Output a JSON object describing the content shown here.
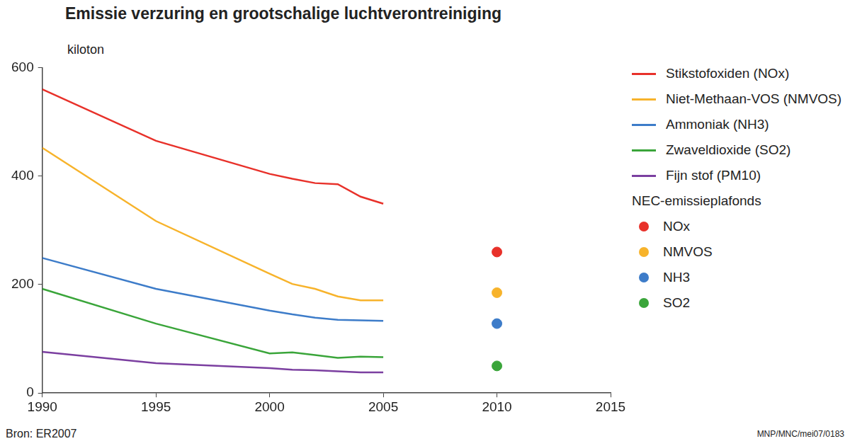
{
  "chart_data": {
    "type": "line",
    "title": "Emissie verzuring en grootschalige luchtverontreiniging",
    "y_label": "kiloton",
    "legend_section": "NEC-emissieplafonds",
    "source": "Bron: ER2007",
    "credit": "MNP/MNC/mei07/0183",
    "x": [
      1990,
      1995,
      2000,
      2001,
      2002,
      2003,
      2004,
      2005
    ],
    "xlim": [
      1990,
      2015
    ],
    "xticks": [
      1990,
      1995,
      2000,
      2005,
      2010,
      2015
    ],
    "ylim": [
      0,
      600
    ],
    "yticks": [
      0,
      200,
      400,
      600
    ],
    "grid": false,
    "legend": "right",
    "series": [
      {
        "name": "Stikstofoxiden (NOx)",
        "type": "line",
        "color": "#e8312a",
        "values": [
          560,
          465,
          404,
          395,
          387,
          385,
          362,
          349
        ]
      },
      {
        "name": "Niet-Methaan-VOS (NMVOS)",
        "type": "line",
        "color": "#f7b32b",
        "values": [
          452,
          317,
          220,
          201,
          192,
          178,
          171,
          171
        ]
      },
      {
        "name": "Ammoniak (NH3)",
        "type": "line",
        "color": "#3d7cc9",
        "values": [
          249,
          192,
          152,
          145,
          139,
          135,
          134,
          133
        ]
      },
      {
        "name": "Zwaveldioxide (SO2)",
        "type": "line",
        "color": "#3aa53a",
        "values": [
          192,
          128,
          73,
          75,
          70,
          65,
          67,
          66
        ]
      },
      {
        "name": "Fijn stof (PM10)",
        "type": "line",
        "color": "#7b3fa0",
        "values": [
          76,
          55,
          46,
          43,
          42,
          40,
          38,
          38
        ]
      },
      {
        "name": "NOx",
        "type": "scatter",
        "marker": "circle",
        "color": "#e8312a",
        "x": [
          2010
        ],
        "values": [
          260
        ]
      },
      {
        "name": "NMVOS",
        "type": "scatter",
        "marker": "circle",
        "color": "#f7b32b",
        "x": [
          2010
        ],
        "values": [
          185
        ]
      },
      {
        "name": "NH3",
        "type": "scatter",
        "marker": "circle",
        "color": "#3d7cc9",
        "x": [
          2010
        ],
        "values": [
          128
        ]
      },
      {
        "name": "SO2",
        "type": "scatter",
        "marker": "circle",
        "color": "#3aa53a",
        "x": [
          2010
        ],
        "values": [
          50
        ]
      }
    ]
  }
}
